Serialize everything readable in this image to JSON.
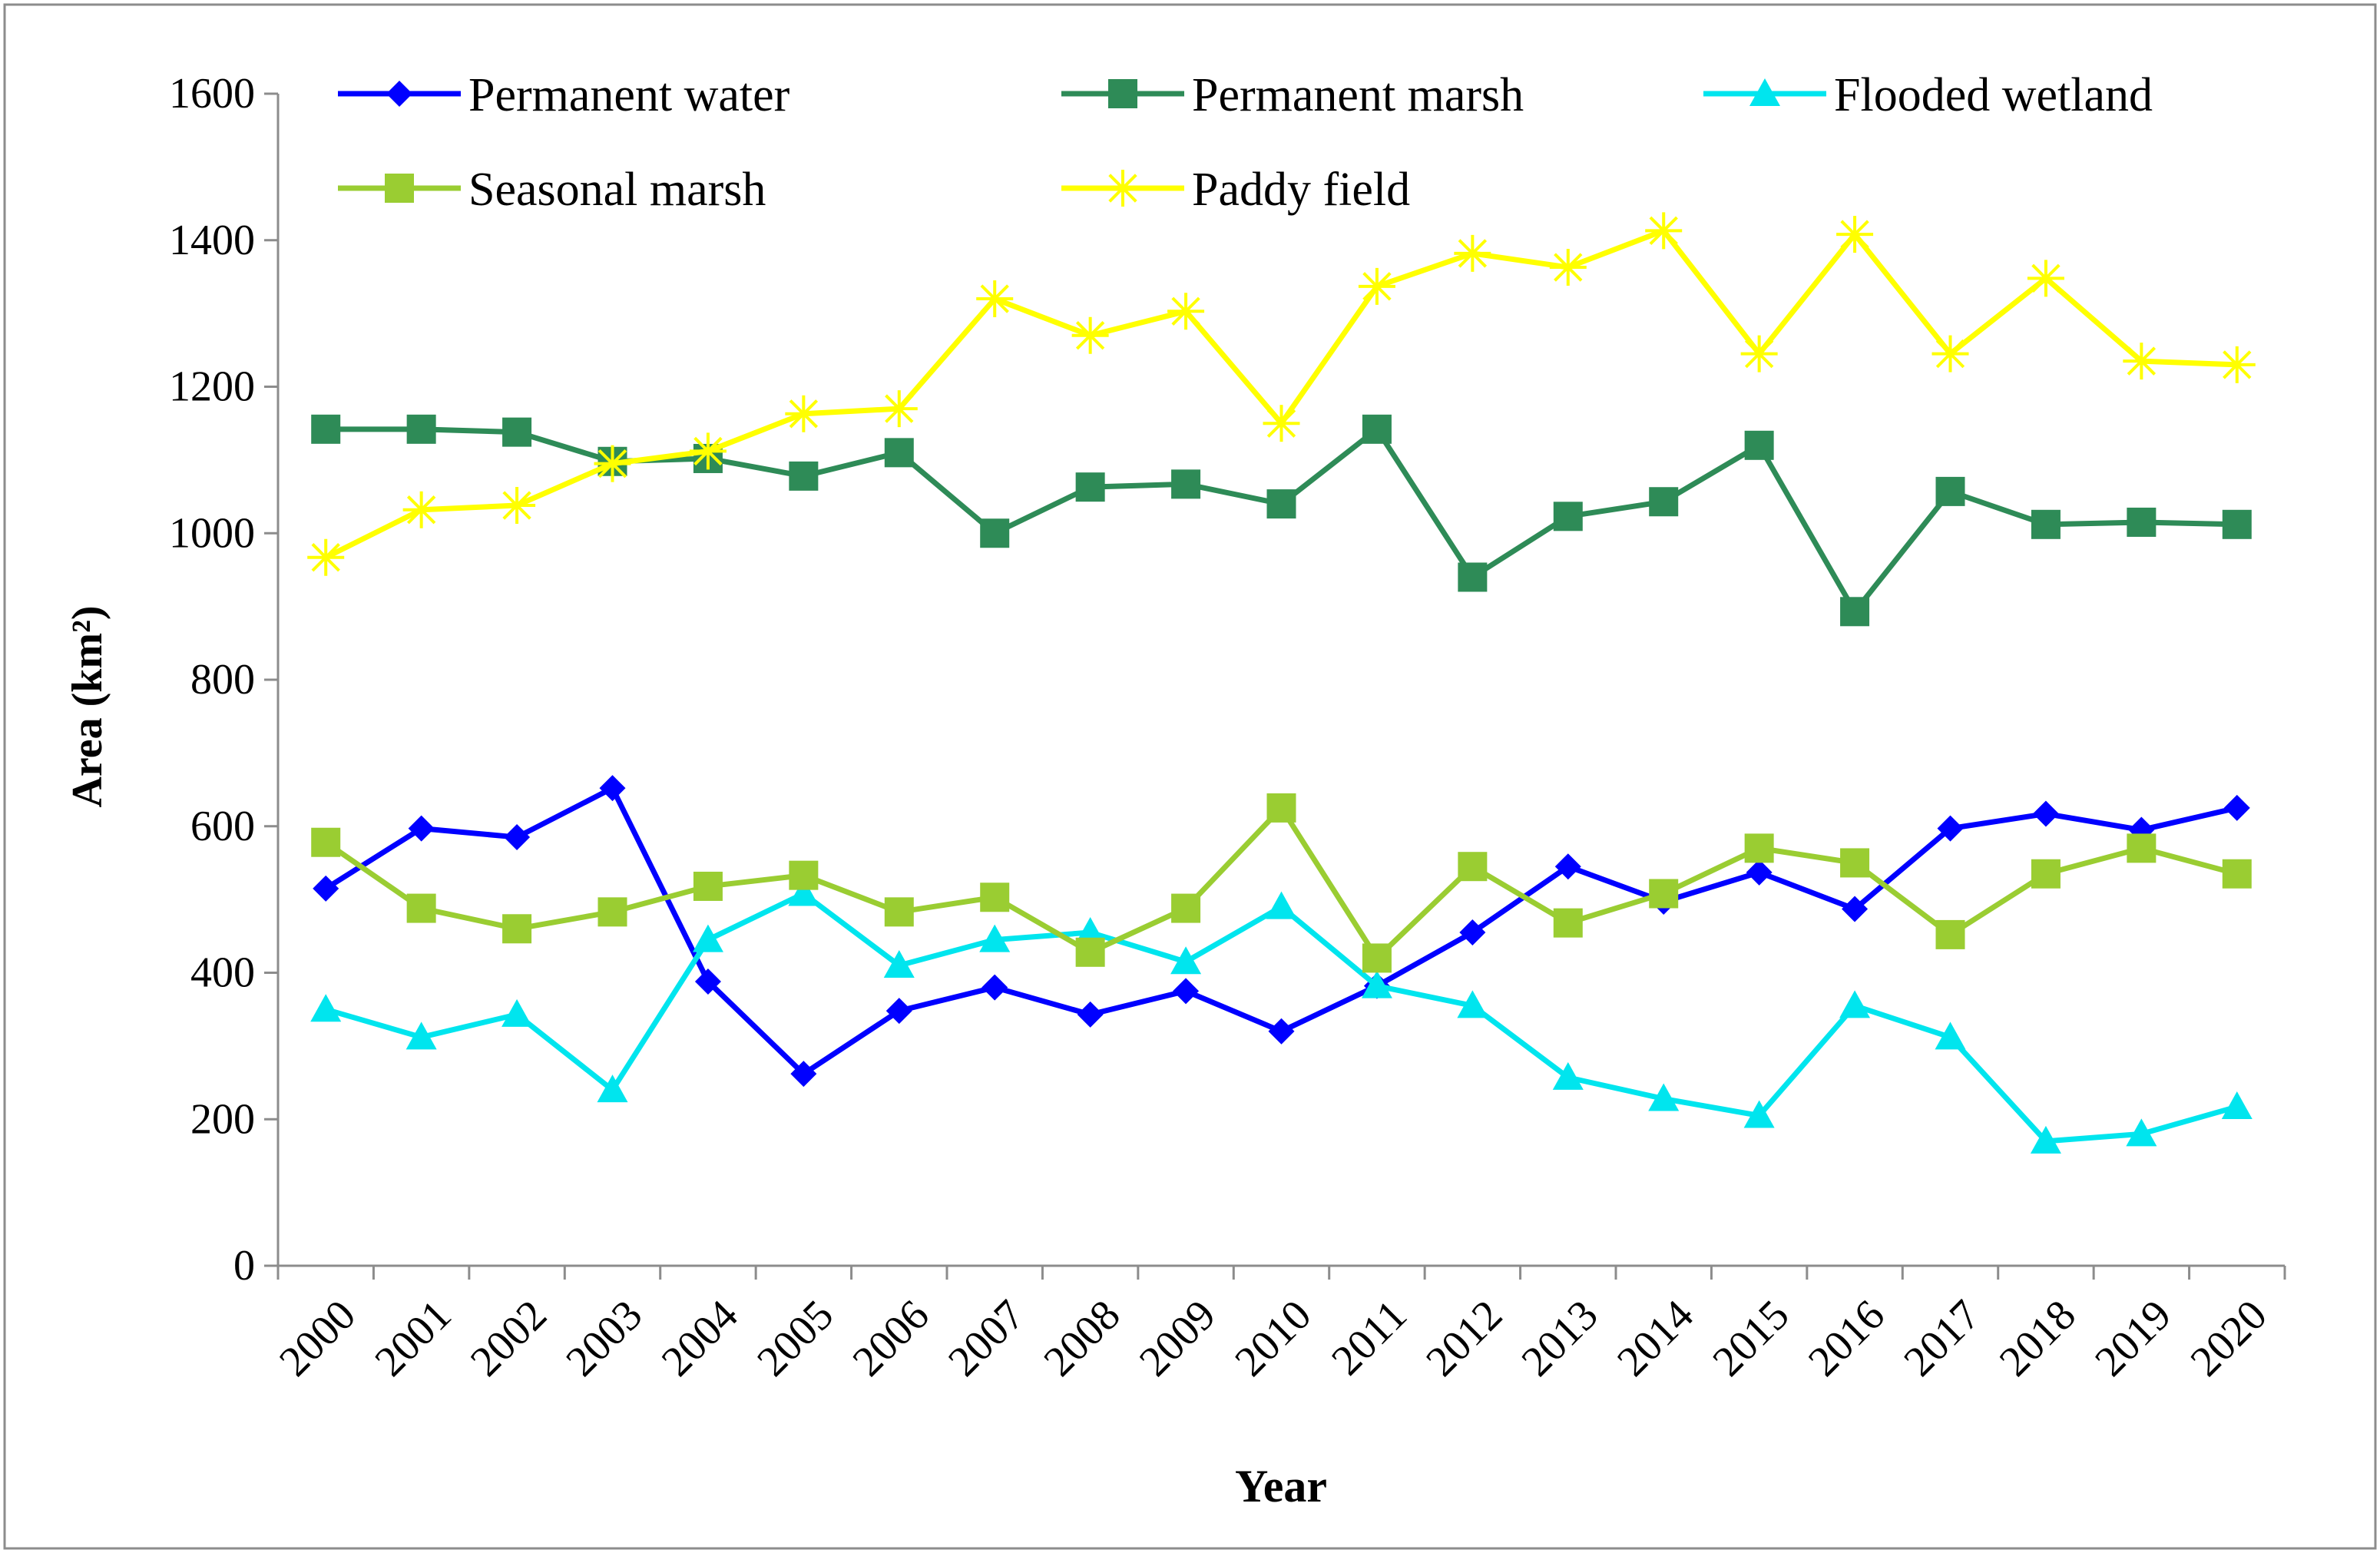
{
  "chart_data": {
    "type": "line",
    "title": "",
    "xlabel": "Year",
    "ylabel": "Area  (km²)",
    "ylim": [
      0,
      1600
    ],
    "yticks": [
      "0",
      "200",
      "400",
      "600",
      "800",
      "1000",
      "1200",
      "1400",
      "1600"
    ],
    "grid": false,
    "legend_position": "top",
    "categories": [
      "2000",
      "2001",
      "2002",
      "2003",
      "2004",
      "2005",
      "2006",
      "2007",
      "2008",
      "2009",
      "2010",
      "2011",
      "2012",
      "2013",
      "2014",
      "2015",
      "2016",
      "2017",
      "2018",
      "2019",
      "2020"
    ],
    "series": [
      {
        "name": "Permanent water",
        "color": "#0000FF",
        "marker": "diamond",
        "values": [
          515,
          597,
          585,
          652,
          388,
          262,
          348,
          380,
          343,
          375,
          320,
          382,
          455,
          545,
          497,
          537,
          487,
          597,
          617,
          595,
          625
        ]
      },
      {
        "name": "Permanent marsh",
        "color": "#2E8B57",
        "marker": "square",
        "values": [
          1142,
          1142,
          1138,
          1098,
          1102,
          1078,
          1110,
          1000,
          1063,
          1067,
          1040,
          1142,
          940,
          1023,
          1043,
          1120,
          893,
          1057,
          1012,
          1015,
          1012
        ]
      },
      {
        "name": "Flooded wetland",
        "color": "#00E5EE",
        "marker": "triangle",
        "values": [
          350,
          312,
          343,
          240,
          445,
          508,
          410,
          445,
          455,
          415,
          490,
          382,
          355,
          257,
          228,
          205,
          355,
          312,
          170,
          180,
          217
        ]
      },
      {
        "name": "Seasonal marsh",
        "color": "#9ACD32",
        "marker": "square",
        "values": [
          578,
          488,
          460,
          483,
          518,
          533,
          483,
          503,
          428,
          488,
          625,
          420,
          545,
          468,
          508,
          570,
          550,
          452,
          535,
          570,
          535
        ]
      },
      {
        "name": "Paddy field",
        "color": "#FFFF00",
        "marker": "asterisk",
        "values": [
          967,
          1032,
          1038,
          1095,
          1112,
          1163,
          1170,
          1320,
          1270,
          1303,
          1150,
          1337,
          1382,
          1363,
          1413,
          1245,
          1408,
          1245,
          1348,
          1235,
          1230
        ]
      }
    ]
  }
}
